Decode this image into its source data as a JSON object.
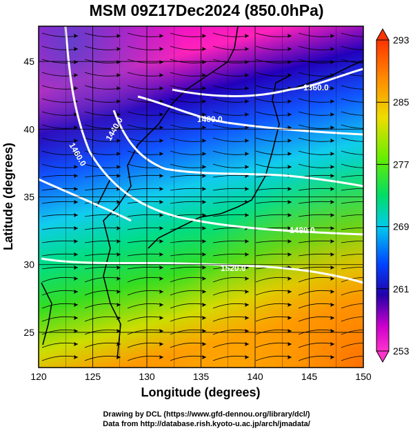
{
  "title": "MSM 09Z17Dec2024 (850.0hPa)",
  "footer": {
    "line1": "Drawing by DCL (https://www.gfd-dennou.org/library/dcl/)",
    "line2": "Data from http://database.rish.kyoto-u.ac.jp/arch/jmadata/"
  },
  "map": {
    "xlabel": "Longitude (degrees)",
    "ylabel": "Latitude  (degrees)",
    "xlim": [
      120,
      150
    ],
    "ylim": [
      22.4,
      47.6
    ],
    "xticks": [
      "120",
      "125",
      "130",
      "135",
      "140",
      "145",
      "150"
    ],
    "yticks": [
      "25",
      "30",
      "35",
      "40",
      "45"
    ],
    "grid": true
  },
  "colorbar": {
    "ticks": [
      "293",
      "285",
      "277",
      "269",
      "261",
      "253"
    ],
    "range": [
      253,
      293
    ],
    "colors": [
      "#f0f0f0",
      "#cc00cc",
      "#ff33cc",
      "#2200aa",
      "#0044ff",
      "#00ccee",
      "#00dd66",
      "#66ee00",
      "#eedd00",
      "#ff8800",
      "#ff3300"
    ]
  },
  "contours": [
    {
      "label": "1360.0"
    },
    {
      "label": "1400.0"
    },
    {
      "label": "1440.0"
    },
    {
      "label": "1460.0"
    },
    {
      "label": "1480.0"
    },
    {
      "label": "1520.0"
    }
  ]
}
